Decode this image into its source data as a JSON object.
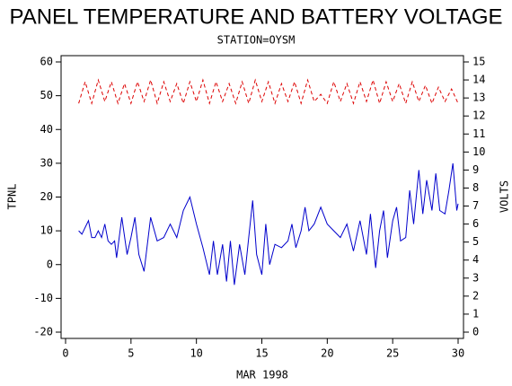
{
  "chart_data": {
    "type": "line",
    "title": "PANEL TEMPERATURE AND BATTERY VOLTAGE",
    "subtitle": "STATION=OYSM",
    "x_label": "MAR 1998",
    "y_label": "TPNL",
    "y2_label": "VOLTS",
    "xlim": [
      0,
      30
    ],
    "xticks": [
      0,
      5,
      10,
      15,
      20,
      25,
      30
    ],
    "ylim": [
      -20,
      60
    ],
    "yticks": [
      -20,
      -10,
      0,
      10,
      20,
      30,
      40,
      50,
      60
    ],
    "y2lim": [
      0,
      15
    ],
    "y2ticks": [
      0,
      1,
      2,
      3,
      4,
      5,
      6,
      7,
      8,
      9,
      10,
      11,
      12,
      13,
      14,
      15
    ],
    "series": [
      {
        "color": "#0000cc",
        "axis": "y",
        "dash": false,
        "x": [
          1,
          1.25,
          1.5,
          1.75,
          2,
          2.25,
          2.5,
          2.75,
          3,
          3.25,
          3.5,
          3.75,
          3.9,
          4.3,
          4.7,
          5,
          5.3,
          5.6,
          6,
          6.5,
          7,
          7.5,
          8,
          8.5,
          9,
          9.5,
          10,
          10.5,
          11,
          11.3,
          11.6,
          12,
          12.3,
          12.6,
          12.9,
          13.3,
          13.7,
          14,
          14.3,
          14.6,
          15,
          15.3,
          15.6,
          16,
          16.5,
          17,
          17.3,
          17.6,
          18,
          18.3,
          18.6,
          19,
          19.5,
          20,
          20.5,
          21,
          21.5,
          22,
          22.5,
          23,
          23.3,
          23.7,
          24,
          24.3,
          24.6,
          25,
          25.3,
          25.6,
          26,
          26.3,
          26.6,
          27,
          27.3,
          27.6,
          28,
          28.3,
          28.6,
          29,
          29.3,
          29.6,
          29.9,
          30
        ],
        "values": [
          10,
          9,
          11,
          13,
          8,
          8,
          10,
          8,
          12,
          7,
          6,
          7,
          2,
          14,
          3,
          8,
          14,
          3,
          -2,
          14,
          7,
          8,
          12,
          8,
          16,
          20,
          12,
          5,
          -3,
          7,
          -3,
          6,
          -5,
          7,
          -6,
          6,
          -3,
          8,
          19,
          3,
          -3,
          12,
          0,
          6,
          5,
          7,
          12,
          5,
          10,
          17,
          10,
          12,
          17,
          12,
          10,
          8,
          12,
          4,
          13,
          3,
          15,
          -1,
          10,
          16,
          2,
          13,
          17,
          7,
          8,
          22,
          12,
          28,
          15,
          25,
          16,
          27,
          16,
          15,
          22,
          30,
          16,
          18
        ]
      },
      {
        "color": "#dd0000",
        "axis": "y2",
        "dash": true,
        "x": [
          1,
          1.5,
          2,
          2.5,
          3,
          3.5,
          4,
          4.5,
          5,
          5.5,
          6,
          6.5,
          7,
          7.5,
          8,
          8.5,
          9,
          9.5,
          10,
          10.5,
          11,
          11.5,
          12,
          12.5,
          13,
          13.5,
          14,
          14.5,
          15,
          15.5,
          16,
          16.5,
          17,
          17.5,
          18,
          18.5,
          19,
          19.5,
          20,
          20.5,
          21,
          21.5,
          22,
          22.5,
          23,
          23.5,
          24,
          24.5,
          25,
          25.5,
          26,
          26.5,
          27,
          27.5,
          28,
          28.5,
          29,
          29.5,
          30
        ],
        "values": [
          12.7,
          13.9,
          12.7,
          14.0,
          12.8,
          13.9,
          12.7,
          13.8,
          12.7,
          13.9,
          12.8,
          14.0,
          12.7,
          13.9,
          12.8,
          13.8,
          12.7,
          13.9,
          12.8,
          14.0,
          12.7,
          13.9,
          12.8,
          13.8,
          12.7,
          13.9,
          12.7,
          14.0,
          12.8,
          13.9,
          12.7,
          13.8,
          12.8,
          13.9,
          12.7,
          14.0,
          12.8,
          13.2,
          12.7,
          13.9,
          12.8,
          13.8,
          12.7,
          13.9,
          12.8,
          14.0,
          12.7,
          13.9,
          12.8,
          13.8,
          12.7,
          13.9,
          12.8,
          13.7,
          12.7,
          13.6,
          12.8,
          13.5,
          12.7
        ]
      }
    ]
  }
}
